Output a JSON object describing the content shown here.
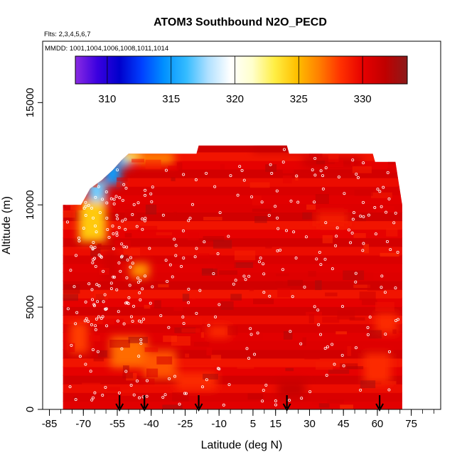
{
  "chart_data": {
    "type": "heatmap",
    "title": "ATOM3 Southbound N2O_PECD",
    "flights_label": "Flts: 2,3,4,5,6,7",
    "mmdd_label": "MMDD: 1001,1004,1006,1008,1011,1014",
    "xlabel": "Latitude (deg N)",
    "ylabel": "Altitude (m)",
    "xlim": [
      -88,
      88
    ],
    "ylim": [
      0,
      18000
    ],
    "x_ticks": [
      -85,
      -70,
      -55,
      -40,
      -25,
      -10,
      5,
      15,
      30,
      45,
      60,
      75
    ],
    "x_tick_labels": [
      "-85",
      "-70",
      "-55",
      "-40",
      "-25",
      "-10",
      "5",
      "15",
      "30",
      "45",
      "60",
      "75"
    ],
    "x_minor_step": 5,
    "y_ticks": [
      0,
      5000,
      10000,
      15000
    ],
    "y_tick_labels": [
      "0",
      "5000",
      "10000",
      "15000"
    ],
    "colorbar": {
      "range": [
        307.5,
        333.5
      ],
      "ticks": [
        310,
        315,
        320,
        325,
        330
      ],
      "tick_labels": [
        "310",
        "315",
        "320",
        "325",
        "330"
      ],
      "colors": [
        "#8a2be2",
        "#3a00e0",
        "#0000cc",
        "#0040ff",
        "#0090ff",
        "#33bbff",
        "#b0e0ff",
        "#ffffff",
        "#ffffcc",
        "#ffee44",
        "#ffc000",
        "#ff8000",
        "#ff3000",
        "#e60000",
        "#c00000",
        "#8b1a1a"
      ]
    },
    "curtain_extent": {
      "lat_range": [
        -79,
        71
      ],
      "max_altitude_by_lat": [
        [
          -79,
          10000
        ],
        [
          -71,
          10000
        ],
        [
          -67,
          10800
        ],
        [
          -62,
          11200
        ],
        [
          -57,
          11700
        ],
        [
          -53,
          12200
        ],
        [
          -50,
          12500
        ],
        [
          -20,
          12500
        ],
        [
          -19,
          12900
        ],
        [
          20,
          12900
        ],
        [
          21,
          12500
        ],
        [
          58,
          12500
        ],
        [
          59,
          12100
        ],
        [
          68,
          12100
        ],
        [
          71,
          10000
        ]
      ]
    },
    "field_features": [
      {
        "lat": -64,
        "alt": 10600,
        "lat_width": 8,
        "alt_width": 1200,
        "value": 317
      },
      {
        "lat": -57,
        "alt": 11500,
        "lat_width": 7,
        "alt_width": 1000,
        "value": 315
      },
      {
        "lat": -52,
        "alt": 12200,
        "lat_width": 6,
        "alt_width": 700,
        "value": 316
      },
      {
        "lat": -48,
        "alt": 12400,
        "lat_width": 8,
        "alt_width": 500,
        "value": 323
      },
      {
        "lat": -66,
        "alt": 9200,
        "lat_width": 12,
        "alt_width": 2000,
        "value": 324.5
      },
      {
        "lat": -38,
        "alt": 12300,
        "lat_width": 16,
        "alt_width": 600,
        "value": 326.5
      },
      {
        "lat": -45,
        "alt": 6800,
        "lat_width": 8,
        "alt_width": 700,
        "value": 326
      },
      {
        "lat": -50,
        "alt": 2800,
        "lat_width": 16,
        "alt_width": 1500,
        "value": 327
      },
      {
        "lat": -36,
        "alt": 2200,
        "lat_width": 14,
        "alt_width": 1400,
        "value": 327.5
      },
      {
        "lat": -72,
        "alt": 3500,
        "lat_width": 8,
        "alt_width": 1500,
        "value": 328
      },
      {
        "lat": -20,
        "alt": 1400,
        "lat_width": 18,
        "alt_width": 900,
        "value": 328.5
      },
      {
        "lat": -10,
        "alt": 3800,
        "lat_width": 10,
        "alt_width": 600,
        "value": 328.5
      },
      {
        "lat": 40,
        "alt": 9300,
        "lat_width": 14,
        "alt_width": 700,
        "value": 329
      },
      {
        "lat": 60,
        "alt": 2000,
        "lat_width": 12,
        "alt_width": 1500,
        "value": 328.5
      },
      {
        "lat": 64,
        "alt": 4200,
        "lat_width": 10,
        "alt_width": 1000,
        "value": 328.5
      },
      {
        "lat": 20,
        "alt": 12800,
        "lat_width": 30,
        "alt_width": 400,
        "value": 331.5
      },
      {
        "lat": 22,
        "alt": 1000,
        "lat_width": 12,
        "alt_width": 800,
        "value": 331.5
      },
      {
        "lat": 40,
        "alt": 12100,
        "lat_width": 26,
        "alt_width": 500,
        "value": 331.2
      },
      {
        "lat": -58,
        "alt": 7000,
        "lat_width": 6,
        "alt_width": 1500,
        "value": 331
      }
    ],
    "arrow_latitudes": [
      -54,
      -43,
      -19,
      20,
      61
    ]
  }
}
